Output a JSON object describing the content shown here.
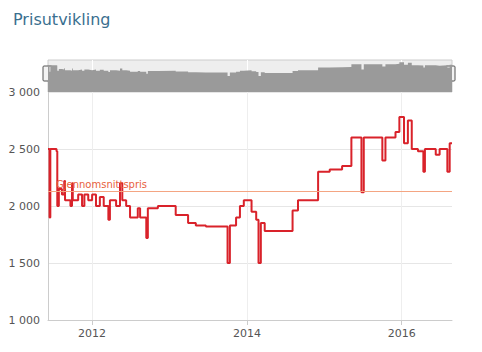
{
  "chart_data": {
    "type": "line",
    "title": "Prisutvikling",
    "line_style": "step",
    "color": "#d9222a",
    "grid": true,
    "x": [
      2011.43,
      2011.45,
      2011.46,
      2011.54,
      2011.55,
      2011.57,
      2011.61,
      2011.64,
      2011.65,
      2011.72,
      2011.74,
      2011.75,
      2011.82,
      2011.87,
      2011.9,
      2011.95,
      2012.0,
      2012.05,
      2012.1,
      2012.15,
      2012.21,
      2012.23,
      2012.31,
      2012.36,
      2012.39,
      2012.44,
      2012.49,
      2012.59,
      2012.62,
      2012.7,
      2012.72,
      2012.85,
      2013.08,
      2013.24,
      2013.34,
      2013.47,
      2013.73,
      2013.75,
      2013.78,
      2013.86,
      2013.91,
      2013.96,
      2014.06,
      2014.12,
      2014.15,
      2014.18,
      2014.23,
      2014.59,
      2014.66,
      2014.92,
      2015.07,
      2015.23,
      2015.35,
      2015.48,
      2015.51,
      2015.75,
      2015.79,
      2015.92,
      2015.97,
      2016.03,
      2016.08,
      2016.13,
      2016.21,
      2016.28,
      2016.3,
      2016.44,
      2016.49,
      2016.59,
      2016.62,
      2016.65
    ],
    "values": [
      2500,
      1900,
      2500,
      2480,
      2000,
      2150,
      2100,
      2220,
      2050,
      2000,
      2200,
      2050,
      2100,
      2000,
      2100,
      2050,
      2100,
      2000,
      2080,
      2000,
      1880,
      2050,
      2000,
      2200,
      2050,
      2000,
      1900,
      1980,
      1900,
      1720,
      1980,
      2000,
      1920,
      1850,
      1830,
      1820,
      1820,
      1500,
      1830,
      1900,
      2000,
      2050,
      1950,
      1880,
      1500,
      1850,
      1780,
      1960,
      2050,
      2300,
      2320,
      2350,
      2600,
      2120,
      2600,
      2400,
      2600,
      2650,
      2780,
      2550,
      2750,
      2500,
      2480,
      2300,
      2500,
      2450,
      2500,
      2300,
      2550,
      2550
    ],
    "xlim": [
      2011.43,
      2016.65
    ],
    "xticks": [
      2012,
      2014,
      2016
    ],
    "ylim": [
      1000,
      3000
    ],
    "yticks": [
      {
        "value": 1000,
        "label": "1 000"
      },
      {
        "value": 1500,
        "label": "1 500"
      },
      {
        "value": 2000,
        "label": "2 000"
      },
      {
        "value": 2500,
        "label": "2 500"
      },
      {
        "value": 3000,
        "label": "3 000"
      }
    ],
    "reference_line": {
      "label": "Gjennomsnittspris",
      "value": 2130,
      "color": "#f4a582"
    }
  }
}
